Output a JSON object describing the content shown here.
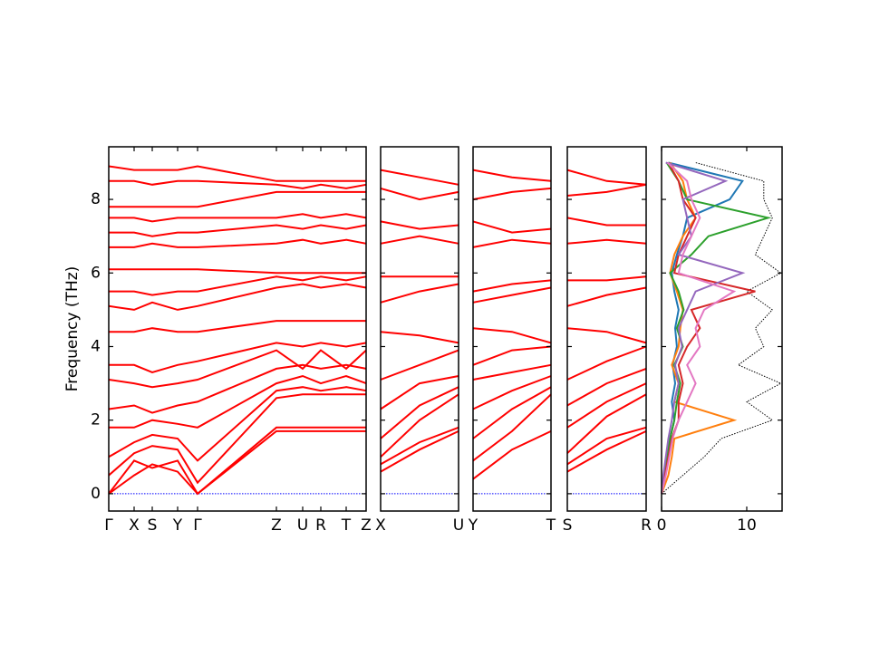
{
  "chart_data": [
    {
      "type": "line",
      "ylabel": "Frequency (THz)",
      "color": "#ff0000",
      "xlim": [
        0,
        2.84
      ],
      "ylim": [
        -0.47,
        9.43
      ],
      "yticks": [
        0,
        2,
        4,
        6,
        8
      ],
      "zero_line": 0,
      "zero_line_color": "#0000ff",
      "x": [
        0,
        0.28,
        0.48,
        0.76,
        0.98,
        1.85,
        2.14,
        2.34,
        2.62,
        2.84
      ],
      "xticks": [
        {
          "value": 0,
          "label": "Γ"
        },
        {
          "value": 0.28,
          "label": "X"
        },
        {
          "value": 0.48,
          "label": "S"
        },
        {
          "value": 0.76,
          "label": "Y"
        },
        {
          "value": 0.98,
          "label": "Γ"
        },
        {
          "value": 1.85,
          "label": "Z"
        },
        {
          "value": 2.14,
          "label": "U"
        },
        {
          "value": 2.34,
          "label": "R"
        },
        {
          "value": 2.62,
          "label": "T"
        },
        {
          "value": 2.84,
          "label": "Z"
        }
      ],
      "series": [
        {
          "values": [
            0,
            0.5,
            0.8,
            0.6,
            0,
            1.7,
            1.7,
            1.7,
            1.7,
            1.7
          ]
        },
        {
          "values": [
            0,
            0.9,
            0.7,
            0.9,
            0,
            1.8,
            1.8,
            1.8,
            1.8,
            1.8
          ]
        },
        {
          "values": [
            0.5,
            1.1,
            1.3,
            1.2,
            0.3,
            2.6,
            2.7,
            2.7,
            2.7,
            2.7
          ]
        },
        {
          "values": [
            1.0,
            1.4,
            1.6,
            1.5,
            0.9,
            2.8,
            2.9,
            2.8,
            2.9,
            2.8
          ]
        },
        {
          "values": [
            1.8,
            1.8,
            2.0,
            1.9,
            1.8,
            3.0,
            3.2,
            3.0,
            3.2,
            3.0
          ]
        },
        {
          "values": [
            2.3,
            2.4,
            2.2,
            2.4,
            2.5,
            3.4,
            3.5,
            3.4,
            3.5,
            3.4
          ]
        },
        {
          "values": [
            3.1,
            3.0,
            2.9,
            3.0,
            3.1,
            3.9,
            3.4,
            3.9,
            3.4,
            3.9
          ]
        },
        {
          "values": [
            3.5,
            3.5,
            3.3,
            3.5,
            3.6,
            4.1,
            4.0,
            4.1,
            4.0,
            4.1
          ]
        },
        {
          "values": [
            4.4,
            4.4,
            4.5,
            4.4,
            4.4,
            4.7,
            4.7,
            4.7,
            4.7,
            4.7
          ]
        },
        {
          "values": [
            5.1,
            5.0,
            5.2,
            5.0,
            5.1,
            5.6,
            5.7,
            5.6,
            5.7,
            5.6
          ]
        },
        {
          "values": [
            5.5,
            5.5,
            5.4,
            5.5,
            5.5,
            5.9,
            5.8,
            5.9,
            5.8,
            5.9
          ]
        },
        {
          "values": [
            6.1,
            6.1,
            6.1,
            6.1,
            6.1,
            6.0,
            6.0,
            6.0,
            6.0,
            6.0
          ]
        },
        {
          "values": [
            6.7,
            6.7,
            6.8,
            6.7,
            6.7,
            6.8,
            6.9,
            6.8,
            6.9,
            6.8
          ]
        },
        {
          "values": [
            7.1,
            7.1,
            7.0,
            7.1,
            7.1,
            7.3,
            7.2,
            7.3,
            7.2,
            7.3
          ]
        },
        {
          "values": [
            7.5,
            7.5,
            7.4,
            7.5,
            7.5,
            7.5,
            7.6,
            7.5,
            7.6,
            7.5
          ]
        },
        {
          "values": [
            7.8,
            7.8,
            7.8,
            7.8,
            7.8,
            8.2,
            8.2,
            8.2,
            8.2,
            8.2
          ]
        },
        {
          "values": [
            8.5,
            8.5,
            8.4,
            8.5,
            8.5,
            8.4,
            8.3,
            8.4,
            8.3,
            8.4
          ]
        },
        {
          "values": [
            8.9,
            8.8,
            8.8,
            8.8,
            8.9,
            8.5,
            8.5,
            8.5,
            8.5,
            8.5
          ]
        }
      ]
    },
    {
      "type": "line",
      "color": "#ff0000",
      "xlim": [
        0,
        1
      ],
      "ylim": [
        -0.47,
        9.43
      ],
      "yticks": [
        0,
        2,
        4,
        6,
        8
      ],
      "zero_line": 0,
      "zero_line_color": "#0000ff",
      "x": [
        0,
        0.5,
        1
      ],
      "xticks": [
        {
          "value": 0,
          "label": "X"
        },
        {
          "value": 1,
          "label": "U"
        }
      ],
      "series": [
        {
          "values": [
            0.6,
            1.2,
            1.7
          ]
        },
        {
          "values": [
            0.8,
            1.4,
            1.8
          ]
        },
        {
          "values": [
            1.0,
            2.0,
            2.7
          ]
        },
        {
          "values": [
            1.5,
            2.4,
            2.9
          ]
        },
        {
          "values": [
            2.3,
            3.0,
            3.2
          ]
        },
        {
          "values": [
            3.1,
            3.5,
            3.9
          ]
        },
        {
          "values": [
            4.4,
            4.3,
            4.1
          ]
        },
        {
          "values": [
            5.2,
            5.5,
            5.7
          ]
        },
        {
          "values": [
            5.9,
            5.9,
            5.9
          ]
        },
        {
          "values": [
            6.8,
            7.0,
            6.8
          ]
        },
        {
          "values": [
            7.4,
            7.2,
            7.3
          ]
        },
        {
          "values": [
            8.3,
            8.0,
            8.2
          ]
        },
        {
          "values": [
            8.8,
            8.6,
            8.4
          ]
        }
      ]
    },
    {
      "type": "line",
      "color": "#ff0000",
      "xlim": [
        0,
        1
      ],
      "ylim": [
        -0.47,
        9.43
      ],
      "yticks": [
        0,
        2,
        4,
        6,
        8
      ],
      "zero_line": 0,
      "zero_line_color": "#0000ff",
      "x": [
        0,
        0.5,
        1
      ],
      "xticks": [
        {
          "value": 0,
          "label": "Y"
        },
        {
          "value": 1,
          "label": "T"
        }
      ],
      "series": [
        {
          "values": [
            0.4,
            1.2,
            1.7
          ]
        },
        {
          "values": [
            0.9,
            1.7,
            2.7
          ]
        },
        {
          "values": [
            1.5,
            2.3,
            2.9
          ]
        },
        {
          "values": [
            2.3,
            2.8,
            3.2
          ]
        },
        {
          "values": [
            3.1,
            3.3,
            3.5
          ]
        },
        {
          "values": [
            3.5,
            3.9,
            4.0
          ]
        },
        {
          "values": [
            4.5,
            4.4,
            4.1
          ]
        },
        {
          "values": [
            5.2,
            5.4,
            5.6
          ]
        },
        {
          "values": [
            5.5,
            5.7,
            5.8
          ]
        },
        {
          "values": [
            6.7,
            6.9,
            6.8
          ]
        },
        {
          "values": [
            7.4,
            7.1,
            7.2
          ]
        },
        {
          "values": [
            8.0,
            8.2,
            8.3
          ]
        },
        {
          "values": [
            8.8,
            8.6,
            8.5
          ]
        }
      ]
    },
    {
      "type": "line",
      "color": "#ff0000",
      "xlim": [
        0,
        1
      ],
      "ylim": [
        -0.47,
        9.43
      ],
      "yticks": [
        0,
        2,
        4,
        6,
        8
      ],
      "zero_line": 0,
      "zero_line_color": "#0000ff",
      "x": [
        0,
        0.5,
        1
      ],
      "xticks": [
        {
          "value": 0,
          "label": "S"
        },
        {
          "value": 1,
          "label": "R"
        }
      ],
      "series": [
        {
          "values": [
            0.6,
            1.2,
            1.7
          ]
        },
        {
          "values": [
            0.8,
            1.5,
            1.8
          ]
        },
        {
          "values": [
            1.1,
            2.1,
            2.7
          ]
        },
        {
          "values": [
            1.8,
            2.5,
            3.0
          ]
        },
        {
          "values": [
            2.4,
            3.0,
            3.4
          ]
        },
        {
          "values": [
            3.1,
            3.6,
            4.0
          ]
        },
        {
          "values": [
            4.5,
            4.4,
            4.1
          ]
        },
        {
          "values": [
            5.1,
            5.4,
            5.6
          ]
        },
        {
          "values": [
            5.8,
            5.8,
            5.9
          ]
        },
        {
          "values": [
            6.8,
            6.9,
            6.8
          ]
        },
        {
          "values": [
            7.5,
            7.3,
            7.3
          ]
        },
        {
          "values": [
            8.1,
            8.2,
            8.4
          ]
        },
        {
          "values": [
            8.8,
            8.5,
            8.4
          ]
        }
      ]
    },
    {
      "type": "line",
      "orientation": "horizontal",
      "xlim": [
        0,
        14.15
      ],
      "ylim": [
        -0.47,
        9.43
      ],
      "yticks": [
        0,
        2,
        4,
        6,
        8
      ],
      "xticks": [
        0,
        10
      ],
      "y": [
        0,
        0.5,
        1,
        1.5,
        2,
        2.5,
        3,
        3.5,
        4,
        4.5,
        5,
        5.5,
        6,
        6.5,
        7,
        7.5,
        8,
        8.5,
        9
      ],
      "series": [
        {
          "color": "#000000",
          "style": "dotted",
          "values": [
            0,
            2.5,
            5,
            7,
            13,
            10,
            14,
            9,
            12,
            11,
            13,
            10,
            14,
            11,
            12,
            13,
            12,
            12,
            4
          ]
        },
        {
          "color": "#1f77b4",
          "values": [
            0,
            0.4,
            0.8,
            1.0,
            1.5,
            1.2,
            1.6,
            1.3,
            1.8,
            1.6,
            2.0,
            1.5,
            1.2,
            1.8,
            2.5,
            3.0,
            8.0,
            9.5,
            0.8
          ]
        },
        {
          "color": "#ff7f0e",
          "values": [
            0,
            0.8,
            1.2,
            1.5,
            8.5,
            1.5,
            2.0,
            1.2,
            2.0,
            2.2,
            2.5,
            1.8,
            1.0,
            1.5,
            2.5,
            4.0,
            3.0,
            2.5,
            1.0
          ]
        },
        {
          "color": "#2ca02c",
          "values": [
            0,
            0.3,
            0.6,
            1.0,
            1.5,
            1.8,
            2.2,
            1.5,
            2.5,
            1.8,
            2.6,
            2.0,
            1.0,
            3.5,
            5.5,
            12.5,
            3.0,
            2.0,
            0.6
          ]
        },
        {
          "color": "#d62728",
          "values": [
            0,
            0.4,
            0.8,
            1.2,
            2.0,
            2.0,
            2.5,
            2.0,
            3.0,
            4.5,
            3.5,
            11.0,
            1.5,
            2.0,
            3.0,
            4.0,
            2.5,
            2.0,
            0.8
          ]
        },
        {
          "color": "#9467bd",
          "values": [
            0,
            0.2,
            0.5,
            0.8,
            1.2,
            1.5,
            2.0,
            1.6,
            2.4,
            2.0,
            3.0,
            4.0,
            9.5,
            2.0,
            3.5,
            3.0,
            2.5,
            7.5,
            0.5
          ]
        },
        {
          "color": "#e377c2",
          "values": [
            0,
            0.5,
            0.9,
            1.3,
            2.0,
            3.0,
            4.0,
            3.0,
            4.5,
            4.0,
            5.0,
            8.5,
            2.0,
            2.5,
            3.5,
            4.5,
            3.5,
            3.0,
            0.7
          ]
        }
      ]
    }
  ]
}
